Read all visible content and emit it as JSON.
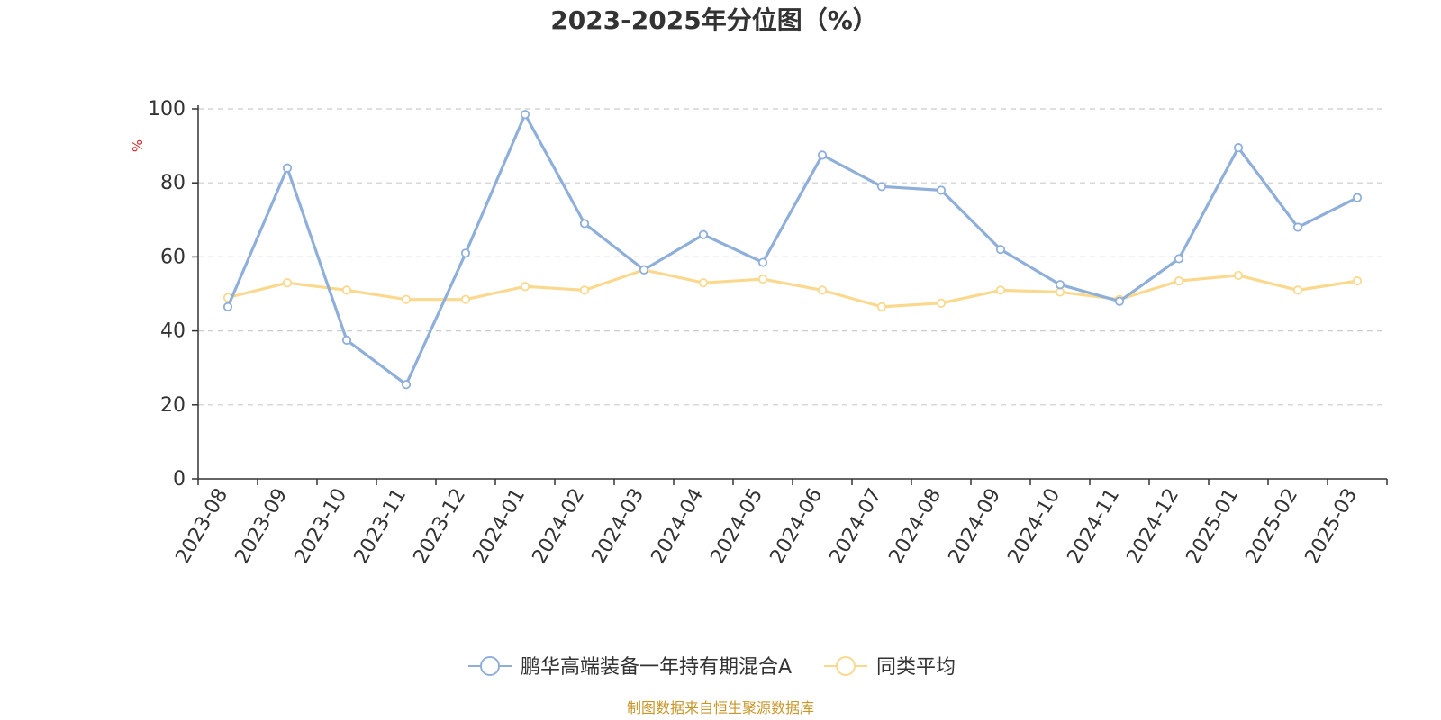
{
  "colors": {
    "series_1": "#8fafdb",
    "series_2": "#fad98f",
    "axis": "#333333",
    "grid": "#cccccc",
    "unit": "#e02020",
    "source": "#c8962a"
  },
  "chart_data": {
    "type": "line",
    "title": "2023-2025年分位图（%）",
    "ylabel": "%",
    "xlabel": "",
    "ylim": [
      0,
      100
    ],
    "yticks": [
      0,
      20,
      40,
      60,
      80,
      100
    ],
    "grid": true,
    "legend_position": "bottom",
    "categories": [
      "2023-08",
      "2023-09",
      "2023-10",
      "2023-11",
      "2023-12",
      "2024-01",
      "2024-02",
      "2024-03",
      "2024-04",
      "2024-05",
      "2024-06",
      "2024-07",
      "2024-08",
      "2024-09",
      "2024-10",
      "2024-11",
      "2024-12",
      "2025-01",
      "2025-02",
      "2025-03"
    ],
    "series": [
      {
        "name": "鹏华高端装备一年持有期混合A",
        "color_key": "series_1",
        "values": [
          46.5,
          84.0,
          37.5,
          25.5,
          61.0,
          98.5,
          69.0,
          56.5,
          66.0,
          58.5,
          87.5,
          79.0,
          78.0,
          62.0,
          52.5,
          48.0,
          59.5,
          89.5,
          68.0,
          76.0
        ]
      },
      {
        "name": "同类平均",
        "color_key": "series_2",
        "values": [
          49.0,
          53.0,
          51.0,
          48.5,
          48.5,
          52.0,
          51.0,
          56.5,
          53.0,
          54.0,
          51.0,
          46.5,
          47.5,
          51.0,
          50.5,
          48.5,
          53.5,
          55.0,
          51.0,
          53.5
        ]
      }
    ],
    "source": "制图数据来自恒生聚源数据库"
  }
}
